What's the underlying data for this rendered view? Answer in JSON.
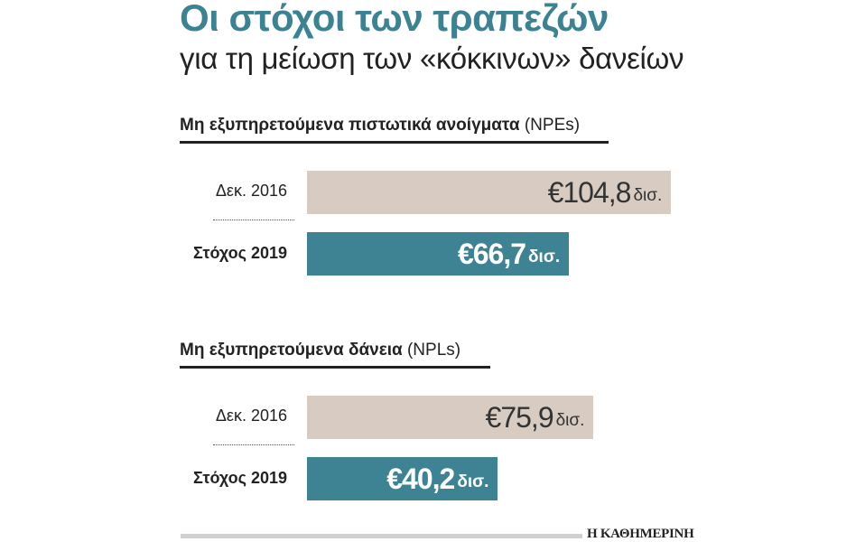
{
  "title": "Οι στόχοι των τραπεζών",
  "subtitle": "για τη μείωση των «κόκκινων» δανείων",
  "brand": "Η ΚΑΘΗΜΕΡΙΝΗ",
  "colors": {
    "title": "#3b8393",
    "base_bar": "#d8ccc2",
    "target_bar": "#3d8393"
  },
  "chart_data": [
    {
      "type": "bar",
      "title_bold": "Μη εξυπηρετούμενα πιστωτικά ανοίγματα",
      "title_suffix": "(NPEs)",
      "categories": [
        "Δεκ. 2016",
        "Στόχος 2019"
      ],
      "values": [
        104.8,
        66.7
      ],
      "labels": [
        "€104,8",
        "€66,7"
      ],
      "unit": "δισ."
    },
    {
      "type": "bar",
      "title_bold": "Μη εξυπηρετούμενα δάνεια",
      "title_suffix": "(NPLs)",
      "categories": [
        "Δεκ. 2016",
        "Στόχος 2019"
      ],
      "values": [
        75.9,
        40.2
      ],
      "labels": [
        "€75,9",
        "€40,2"
      ],
      "unit": "δισ."
    }
  ]
}
